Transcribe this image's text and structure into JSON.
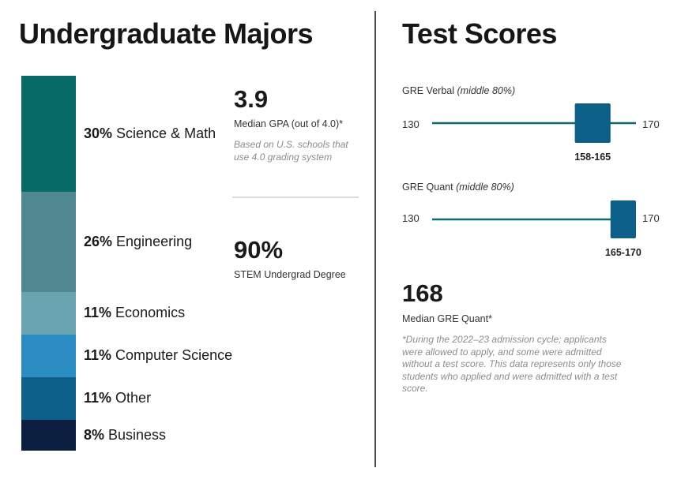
{
  "majors": {
    "title": "Undergraduate Majors",
    "chart_data": {
      "type": "bar",
      "stacked": true,
      "categories": [
        "Science & Math",
        "Engineering",
        "Economics",
        "Computer Science",
        "Other",
        "Business"
      ],
      "values": [
        30,
        26,
        11,
        11,
        11,
        8
      ],
      "value_labels": [
        "30%",
        "26%",
        "11%",
        "11%",
        "11%",
        "8%"
      ],
      "colors": [
        "#066b67",
        "#4f8891",
        "#6aa4b0",
        "#2b8cc4",
        "#0c5f86",
        "#0c1f40"
      ]
    }
  },
  "stats": {
    "gpa_value": "3.9",
    "gpa_caption": "Median GPA (out of 4.0)*",
    "gpa_note": "Based on U.S. schools that use 4.0 grading system",
    "stem_value": "90%",
    "stem_caption": "STEM Undergrad Degree"
  },
  "scores": {
    "title": "Test Scores",
    "chart_data": [
      {
        "type": "range",
        "name": "GRE Verbal",
        "qualifier": "(middle 80%)",
        "scale": [
          130,
          170
        ],
        "range": [
          158,
          165
        ],
        "range_label": "158-165",
        "scale_min_label": "130",
        "scale_max_label": "170",
        "color": "#0c5f86"
      },
      {
        "type": "range",
        "name": "GRE Quant",
        "qualifier": "(middle 80%)",
        "scale": [
          130,
          170
        ],
        "range": [
          165,
          170
        ],
        "range_label": "165-170",
        "scale_min_label": "130",
        "scale_max_label": "170",
        "color": "#0c5f86"
      }
    ],
    "median_value": "168",
    "median_caption": "Median GRE Quant*",
    "footnote": "*During the 2022–23 admission cycle; applicants were allowed to apply, and some were admitted without a test score. This data represents only those students who applied and were admitted with a test score."
  }
}
